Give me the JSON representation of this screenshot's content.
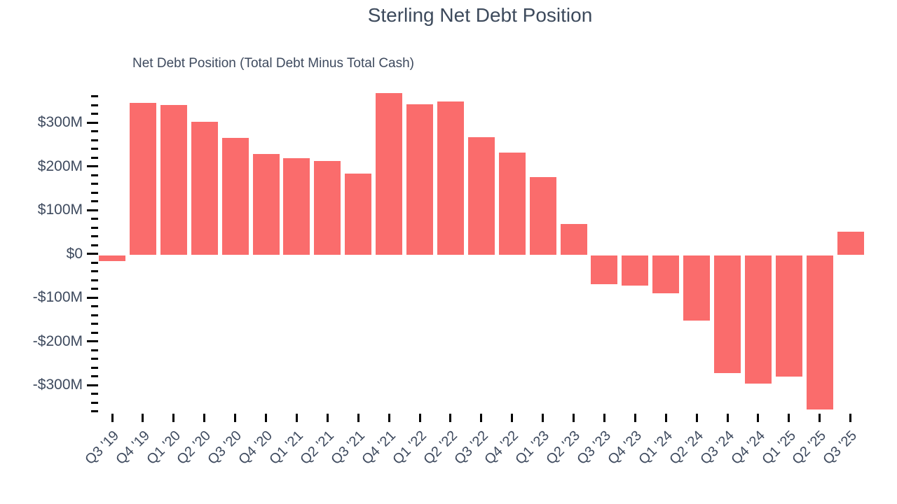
{
  "title": "Sterling Net Debt Position",
  "legend": {
    "label": "Net Debt Position (Total Debt Minus Total Cash)",
    "marker_color": "#FA6C6C"
  },
  "colors": {
    "bar": "#FA6C6C",
    "text": "#3E4A5E",
    "tick": "#000000",
    "background": "#FFFFFF"
  },
  "chart_data": {
    "type": "bar",
    "title": "Sterling Net Debt Position",
    "xlabel": "",
    "ylabel": "",
    "unit": "USD millions",
    "grid": false,
    "legend_position": "top-left",
    "categories": [
      "Q3 '19",
      "Q4 '19",
      "Q1 '20",
      "Q2 '20",
      "Q3 '20",
      "Q4 '20",
      "Q1 '21",
      "Q2 '21",
      "Q3 '21",
      "Q4 '21",
      "Q1 '22",
      "Q2 '22",
      "Q3 '22",
      "Q4 '22",
      "Q1 '23",
      "Q2 '23",
      "Q3 '23",
      "Q4 '23",
      "Q1 '24",
      "Q2 '24",
      "Q3 '24",
      "Q4 '24",
      "Q1 '25",
      "Q2 '25",
      "Q3 '25"
    ],
    "series": [
      {
        "name": "Net Debt Position (Total Debt Minus Total Cash)",
        "color": "#FA6C6C",
        "values": [
          -16,
          345,
          340,
          302,
          265,
          228,
          218,
          212,
          183,
          367,
          341,
          348,
          267,
          232,
          176,
          68,
          -69,
          -73,
          -91,
          -152,
          -272,
          -296,
          -281,
          -356,
          50
        ]
      }
    ],
    "ylim": [
      -380,
      385
    ],
    "ytick_major_step": 100,
    "ytick_minor_step": 20,
    "ytick_range": [
      -360,
      360
    ],
    "ytick_labels": [
      {
        "value": 300,
        "label": "$300M"
      },
      {
        "value": 200,
        "label": "$200M"
      },
      {
        "value": 100,
        "label": "$100M"
      },
      {
        "value": 0,
        "label": "$0"
      },
      {
        "value": -100,
        "label": "-$100M"
      },
      {
        "value": -200,
        "label": "-$200M"
      },
      {
        "value": -300,
        "label": "-$300M"
      }
    ]
  }
}
